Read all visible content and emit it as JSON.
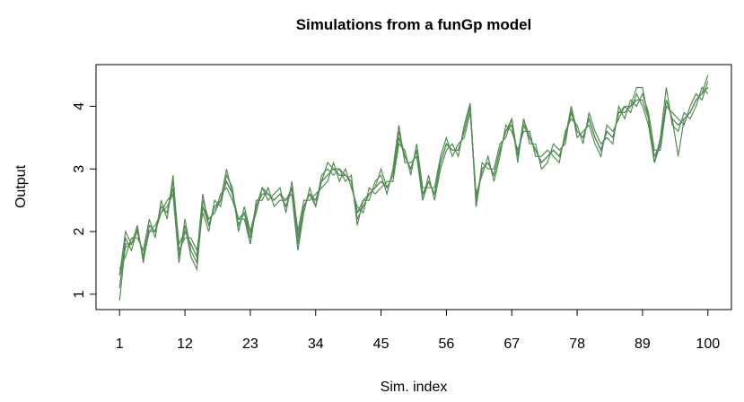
{
  "chart_data": {
    "type": "line",
    "title": "Simulations from a funGp model",
    "x_label": "Sim. index",
    "y_label": "Output",
    "x": [
      1,
      2,
      3,
      4,
      5,
      6,
      7,
      8,
      9,
      10,
      11,
      12,
      13,
      14,
      15,
      16,
      17,
      18,
      19,
      20,
      21,
      22,
      23,
      24,
      25,
      26,
      27,
      28,
      29,
      30,
      31,
      32,
      33,
      34,
      35,
      36,
      37,
      38,
      39,
      40,
      41,
      42,
      43,
      44,
      45,
      46,
      47,
      48,
      49,
      50,
      51,
      52,
      53,
      54,
      55,
      56,
      57,
      58,
      59,
      60,
      61,
      62,
      63,
      64,
      65,
      66,
      67,
      68,
      69,
      70,
      71,
      72,
      73,
      74,
      75,
      76,
      77,
      78,
      79,
      80,
      81,
      82,
      83,
      84,
      85,
      86,
      87,
      88,
      89,
      90,
      91,
      92,
      93,
      94,
      95,
      96,
      97,
      98,
      99,
      100
    ],
    "series": [
      {
        "color": "#548b54",
        "values": [
          1.3,
          1.75,
          1.8,
          2.0,
          1.6,
          2.1,
          2.0,
          2.4,
          2.3,
          2.7,
          1.6,
          2.0,
          1.8,
          1.6,
          2.4,
          2.1,
          2.4,
          2.5,
          2.8,
          2.6,
          2.1,
          2.3,
          1.9,
          2.4,
          2.6,
          2.6,
          2.5,
          2.6,
          2.4,
          2.7,
          1.9,
          2.4,
          2.6,
          2.5,
          2.8,
          2.9,
          3.0,
          2.9,
          2.9,
          2.8,
          2.3,
          2.4,
          2.6,
          2.7,
          2.8,
          2.7,
          2.9,
          3.5,
          3.2,
          3.0,
          3.3,
          2.6,
          2.8,
          2.6,
          3.1,
          3.4,
          3.3,
          3.3,
          3.6,
          4.0,
          2.5,
          3.0,
          3.1,
          2.9,
          3.3,
          3.6,
          3.7,
          3.2,
          3.7,
          3.5,
          3.3,
          3.1,
          3.2,
          3.3,
          3.2,
          3.5,
          3.9,
          3.6,
          3.5,
          3.8,
          3.5,
          3.3,
          3.6,
          3.5,
          3.9,
          3.9,
          4.0,
          4.1,
          4.1,
          3.8,
          3.2,
          3.4,
          4.1,
          3.8,
          3.7,
          3.8,
          3.9,
          4.1,
          4.2,
          4.3
        ]
      },
      {
        "color": "#548b54",
        "values": [
          1.1,
          1.9,
          1.7,
          2.05,
          1.55,
          2.0,
          2.1,
          2.3,
          2.5,
          2.6,
          1.5,
          2.2,
          1.7,
          1.5,
          2.5,
          2.2,
          2.3,
          2.6,
          2.7,
          2.5,
          2.2,
          2.2,
          1.8,
          2.5,
          2.5,
          2.7,
          2.4,
          2.5,
          2.5,
          2.6,
          1.7,
          2.3,
          2.7,
          2.4,
          2.9,
          3.0,
          2.9,
          3.0,
          2.8,
          2.9,
          2.1,
          2.5,
          2.5,
          2.8,
          2.9,
          2.6,
          3.0,
          3.7,
          3.1,
          3.1,
          3.2,
          2.5,
          2.9,
          2.5,
          3.0,
          3.3,
          3.4,
          3.2,
          3.7,
          4.05,
          2.4,
          3.1,
          3.0,
          3.0,
          3.4,
          3.5,
          3.8,
          3.1,
          3.8,
          3.4,
          3.4,
          3.0,
          3.1,
          3.4,
          3.3,
          3.4,
          4.0,
          3.5,
          3.6,
          3.7,
          3.4,
          3.2,
          3.7,
          3.6,
          3.8,
          4.0,
          3.9,
          4.2,
          4.0,
          3.7,
          3.1,
          3.5,
          4.3,
          3.7,
          3.6,
          3.9,
          3.8,
          4.0,
          4.3,
          4.2
        ]
      },
      {
        "color": "#548b54",
        "values": [
          1.4,
          1.6,
          1.9,
          1.9,
          1.7,
          2.2,
          1.9,
          2.5,
          2.2,
          2.9,
          1.7,
          1.9,
          1.9,
          1.7,
          2.3,
          2.0,
          2.5,
          2.4,
          2.9,
          2.7,
          2.0,
          2.4,
          2.0,
          2.3,
          2.7,
          2.5,
          2.6,
          2.7,
          2.3,
          2.8,
          2.0,
          2.5,
          2.5,
          2.6,
          2.7,
          2.8,
          3.1,
          2.8,
          3.0,
          2.7,
          2.4,
          2.3,
          2.7,
          2.6,
          2.7,
          2.8,
          2.8,
          3.4,
          3.3,
          2.9,
          3.4,
          2.7,
          2.7,
          2.7,
          3.2,
          3.5,
          3.2,
          3.4,
          3.5,
          3.9,
          2.6,
          2.9,
          3.2,
          2.8,
          3.2,
          3.7,
          3.6,
          3.3,
          3.6,
          3.6,
          3.2,
          3.2,
          3.3,
          3.2,
          3.1,
          3.6,
          3.8,
          3.7,
          3.4,
          3.9,
          3.6,
          3.4,
          3.5,
          3.4,
          4.0,
          3.8,
          4.1,
          4.0,
          4.2,
          3.9,
          3.3,
          3.3,
          4.0,
          3.9,
          3.8,
          3.7,
          4.0,
          4.2,
          4.1,
          4.4
        ]
      },
      {
        "color": "#548b54",
        "values": [
          0.9,
          1.8,
          1.8,
          2.1,
          1.5,
          2.1,
          2.0,
          2.3,
          2.4,
          2.6,
          1.6,
          2.1,
          1.6,
          1.4,
          2.4,
          2.2,
          2.3,
          2.5,
          2.8,
          2.6,
          2.2,
          2.3,
          1.8,
          2.4,
          2.6,
          2.6,
          2.5,
          2.6,
          2.5,
          2.7,
          1.8,
          2.4,
          2.6,
          2.4,
          2.8,
          2.9,
          3.0,
          2.9,
          2.9,
          2.8,
          2.2,
          2.4,
          2.6,
          2.7,
          2.8,
          2.7,
          2.9,
          3.6,
          3.2,
          3.0,
          3.3,
          2.5,
          2.8,
          2.6,
          3.1,
          3.4,
          3.3,
          3.3,
          3.6,
          4.0,
          2.4,
          3.0,
          3.1,
          2.9,
          3.3,
          3.6,
          3.7,
          3.2,
          3.7,
          3.5,
          3.3,
          3.1,
          3.2,
          3.3,
          3.2,
          3.5,
          3.9,
          3.6,
          3.5,
          3.8,
          3.5,
          3.3,
          3.6,
          3.5,
          3.9,
          3.9,
          4.0,
          4.1,
          4.1,
          3.8,
          3.1,
          3.4,
          4.1,
          3.8,
          3.7,
          3.8,
          3.9,
          4.1,
          4.2,
          4.3
        ]
      },
      {
        "color": "#548b54",
        "values": [
          1.3,
          2.0,
          1.8,
          2.0,
          1.6,
          2.0,
          2.0,
          2.4,
          2.3,
          2.8,
          1.8,
          2.0,
          1.8,
          1.6,
          2.6,
          2.1,
          2.4,
          2.5,
          3.0,
          2.6,
          2.1,
          2.3,
          2.0,
          2.4,
          2.7,
          2.6,
          2.5,
          2.6,
          2.4,
          2.7,
          1.9,
          2.4,
          2.6,
          2.5,
          2.8,
          3.1,
          3.0,
          3.0,
          2.9,
          2.8,
          2.3,
          2.5,
          2.6,
          2.7,
          3.0,
          2.7,
          2.9,
          3.5,
          3.2,
          3.0,
          3.3,
          2.6,
          2.8,
          2.6,
          3.1,
          3.4,
          3.3,
          3.3,
          3.6,
          4.0,
          2.5,
          3.0,
          3.1,
          2.9,
          3.3,
          3.6,
          3.8,
          3.2,
          3.8,
          3.5,
          3.3,
          3.1,
          3.2,
          3.3,
          3.2,
          3.5,
          4.0,
          3.6,
          3.5,
          3.8,
          3.5,
          3.3,
          3.6,
          3.5,
          3.9,
          4.0,
          4.0,
          4.3,
          4.3,
          3.8,
          3.1,
          3.4,
          4.1,
          3.8,
          3.2,
          3.8,
          3.9,
          4.1,
          4.2,
          4.5
        ]
      }
    ],
    "xlim": [
      -2.96,
      103.96
    ],
    "xticks": [
      1,
      12,
      23,
      34,
      45,
      56,
      67,
      78,
      89,
      100
    ],
    "ylim": [
      0.755,
      4.665
    ],
    "yticks": [
      1,
      2,
      3,
      4
    ]
  }
}
